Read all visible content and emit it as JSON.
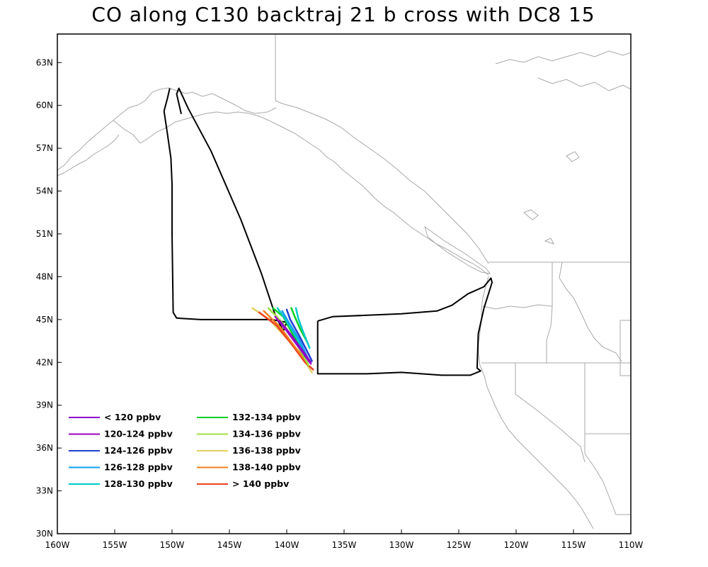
{
  "title": "CO along C130 backtraj 21 b cross with DC8 15",
  "x_ticks": [
    "160W",
    "155W",
    "150W",
    "145W",
    "140W",
    "135W",
    "130W",
    "125W",
    "120W",
    "115W",
    "110W"
  ],
  "y_ticks": [
    "63N",
    "60N",
    "57N",
    "54N",
    "51N",
    "48N",
    "45N",
    "42N",
    "39N",
    "36N",
    "33N",
    "30N"
  ],
  "legend": [
    {
      "label": "< 120 ppbv",
      "color": "#8a00c8"
    },
    {
      "label": "120-124 ppbv",
      "color": "#a000c0"
    },
    {
      "label": "124-126 ppbv",
      "color": "#2040d0"
    },
    {
      "label": "126-128 ppbv",
      "color": "#10a0f0"
    },
    {
      "label": "128-130 ppbv",
      "color": "#00c8c8"
    },
    {
      "label": "132-134 ppbv",
      "color": "#00d020"
    },
    {
      "label": "134-136 ppbv",
      "color": "#a0e040"
    },
    {
      "label": "136-138 ppbv",
      "color": "#e0d060"
    },
    {
      "label": "138-140 ppbv",
      "color": "#f08020"
    },
    {
      "label": "> 140 ppbv",
      "color": "#f04020"
    }
  ],
  "map_extent": {
    "lon_min": -160,
    "lon_max": -110,
    "lat_min": 30,
    "lat_max": 65
  },
  "flight_track": [
    [
      -149.2,
      59.4
    ],
    [
      -149.6,
      60.8
    ],
    [
      -149.4,
      61.2
    ],
    [
      -148.6,
      59.8
    ],
    [
      -146.6,
      56.8
    ],
    [
      -144.0,
      52.0
    ],
    [
      -142.2,
      48.2
    ],
    [
      -141.0,
      45.3
    ],
    [
      -140.3,
      44.2
    ],
    [
      -140.0,
      44.8
    ],
    [
      -141.3,
      45.0
    ],
    [
      -144.0,
      45.0
    ],
    [
      -147.5,
      45.0
    ],
    [
      -149.6,
      45.1
    ],
    [
      -149.9,
      45.5
    ],
    [
      -150.0,
      51.0
    ],
    [
      -150.0,
      54.5
    ],
    [
      -150.1,
      56.3
    ],
    [
      -150.4,
      58.0
    ],
    [
      -150.7,
      59.6
    ],
    [
      -150.4,
      60.5
    ],
    [
      -150.2,
      61.2
    ]
  ],
  "box_track": [
    [
      -137.3,
      44.9
    ],
    [
      -136.0,
      45.2
    ],
    [
      -133.0,
      45.3
    ],
    [
      -130.0,
      45.4
    ],
    [
      -126.9,
      45.6
    ],
    [
      -125.6,
      46.0
    ],
    [
      -124.2,
      46.8
    ],
    [
      -122.8,
      47.3
    ],
    [
      -122.2,
      47.9
    ],
    [
      -122.1,
      47.6
    ],
    [
      -122.8,
      45.8
    ],
    [
      -123.3,
      44.0
    ],
    [
      -123.4,
      41.6
    ],
    [
      -123.1,
      41.4
    ],
    [
      -124.0,
      41.1
    ],
    [
      -126.5,
      41.1
    ],
    [
      -130.0,
      41.3
    ],
    [
      -133.0,
      41.2
    ],
    [
      -137.3,
      41.2
    ],
    [
      -137.3,
      44.9
    ]
  ],
  "trajectories": [
    {
      "color": "#e0d060",
      "points": [
        [
          -143.0,
          45.8
        ],
        [
          -141.5,
          45.0
        ],
        [
          -139.8,
          43.5
        ],
        [
          -138.6,
          42.3
        ],
        [
          -137.8,
          41.3
        ]
      ]
    },
    {
      "color": "#f04020",
      "points": [
        [
          -142.4,
          45.5
        ],
        [
          -140.9,
          44.6
        ],
        [
          -139.6,
          43.3
        ],
        [
          -138.4,
          42.0
        ],
        [
          -137.7,
          41.5
        ]
      ]
    },
    {
      "color": "#f08020",
      "points": [
        [
          -142.0,
          45.6
        ],
        [
          -140.6,
          44.5
        ],
        [
          -139.3,
          43.1
        ],
        [
          -138.2,
          42.0
        ]
      ]
    },
    {
      "color": "#a0e040",
      "points": [
        [
          -141.6,
          45.8
        ],
        [
          -140.4,
          44.8
        ],
        [
          -139.2,
          43.4
        ],
        [
          -138.1,
          41.8
        ]
      ]
    },
    {
      "color": "#00d020",
      "points": [
        [
          -141.2,
          45.8
        ],
        [
          -140.3,
          45.2
        ],
        [
          -139.5,
          44.0
        ],
        [
          -138.4,
          42.4
        ]
      ]
    },
    {
      "color": "#00c8c8",
      "points": [
        [
          -140.8,
          45.8
        ],
        [
          -140.1,
          45.0
        ],
        [
          -139.2,
          43.8
        ],
        [
          -138.2,
          42.2
        ]
      ]
    },
    {
      "color": "#10a0f0",
      "points": [
        [
          -140.4,
          45.6
        ],
        [
          -139.9,
          44.9
        ],
        [
          -138.9,
          43.6
        ],
        [
          -138.0,
          42.0
        ]
      ]
    },
    {
      "color": "#2040d0",
      "points": [
        [
          -140.0,
          45.7
        ],
        [
          -139.7,
          45.0
        ],
        [
          -138.8,
          43.7
        ],
        [
          -137.8,
          42.1
        ]
      ]
    },
    {
      "color": "#00d020",
      "points": [
        [
          -139.6,
          45.8
        ],
        [
          -139.3,
          45.2
        ],
        [
          -138.8,
          44.3
        ],
        [
          -138.2,
          43.4
        ]
      ]
    },
    {
      "color": "#00c8c8",
      "points": [
        [
          -139.2,
          45.8
        ],
        [
          -139.0,
          45.1
        ],
        [
          -138.6,
          44.2
        ],
        [
          -138.0,
          43.0
        ]
      ]
    },
    {
      "color": "#a000c0",
      "points": [
        [
          -141.0,
          45.2
        ],
        [
          -140.0,
          44.2
        ],
        [
          -138.8,
          42.9
        ],
        [
          -137.9,
          41.9
        ]
      ]
    },
    {
      "color": "#8a00c8",
      "points": [
        [
          -140.6,
          44.9
        ],
        [
          -139.6,
          43.9
        ],
        [
          -138.6,
          42.8
        ],
        [
          -137.9,
          42.0
        ]
      ]
    }
  ]
}
